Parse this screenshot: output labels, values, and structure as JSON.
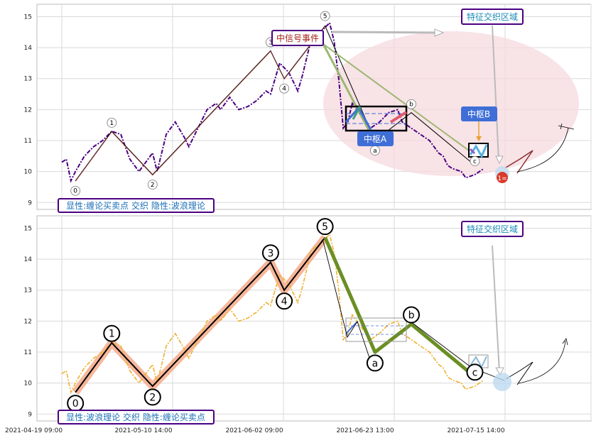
{
  "chart_data": [
    {
      "type": "line",
      "panel": "top",
      "caption": "显性:缠论买卖点 交织 隐性:波浪理论",
      "xlim": [
        0,
        100
      ],
      "ylim": [
        8.8,
        15.4
      ],
      "y_ticks": [
        9,
        10,
        11,
        12,
        13,
        14,
        15
      ],
      "grid": true,
      "series": [
        {
          "role": "price",
          "style": "dash-dot",
          "color": "#4b0082",
          "points": [
            [
              0,
              10.3
            ],
            [
              1,
              10.4
            ],
            [
              2,
              9.7
            ],
            [
              3,
              10.0
            ],
            [
              5,
              10.5
            ],
            [
              7,
              10.8
            ],
            [
              9,
              11.0
            ],
            [
              11,
              11.3
            ],
            [
              13,
              11.2
            ],
            [
              15,
              10.4
            ],
            [
              17,
              10.0
            ],
            [
              18,
              10.2
            ],
            [
              20,
              10.6
            ],
            [
              21,
              10.0
            ],
            [
              23,
              11.2
            ],
            [
              25,
              11.6
            ],
            [
              27,
              11.1
            ],
            [
              28,
              10.8
            ],
            [
              30,
              11.4
            ],
            [
              32,
              12.0
            ],
            [
              34,
              12.2
            ],
            [
              35,
              12.0
            ],
            [
              37,
              12.4
            ],
            [
              39,
              12.0
            ],
            [
              41,
              12.1
            ],
            [
              43,
              12.3
            ],
            [
              45,
              12.6
            ],
            [
              46,
              12.5
            ],
            [
              48,
              13.5
            ],
            [
              50,
              13.2
            ],
            [
              52,
              12.6
            ],
            [
              53,
              13.1
            ],
            [
              55,
              14.3
            ],
            [
              57,
              14.5
            ],
            [
              59,
              14.8
            ],
            [
              60,
              14.2
            ],
            [
              61,
              13.0
            ],
            [
              62,
              11.4
            ],
            [
              63,
              11.6
            ],
            [
              64,
              12.2
            ],
            [
              66,
              11.8
            ],
            [
              68,
              11.4
            ],
            [
              70,
              11.6
            ],
            [
              72,
              11.9
            ],
            [
              74,
              12.0
            ],
            [
              75,
              11.6
            ],
            [
              77,
              11.4
            ],
            [
              79,
              11.2
            ],
            [
              81,
              11.0
            ],
            [
              82,
              10.8
            ],
            [
              83,
              10.6
            ],
            [
              84,
              10.5
            ],
            [
              85,
              10.2
            ],
            [
              86,
              10.1
            ],
            [
              88,
              10.0
            ],
            [
              89,
              9.8
            ],
            [
              91,
              9.9
            ],
            [
              93,
              10.1
            ]
          ]
        },
        {
          "role": "wave",
          "color": "#000000",
          "points": [
            [
              3,
              9.7
            ],
            [
              11,
              11.3
            ],
            [
              20,
              9.9
            ],
            [
              46,
              13.9
            ],
            [
              49,
              13.0
            ],
            [
              58,
              14.7
            ],
            [
              69,
              11.0
            ],
            [
              77,
              11.9
            ],
            [
              91,
              10.2
            ]
          ]
        }
      ],
      "wave_labels": [
        "0",
        "1",
        "2",
        "3",
        "4",
        "5",
        "a",
        "b",
        "c"
      ],
      "annotations": [
        "中信号事件",
        "特征交织区域",
        "中枢A",
        "中枢B",
        "1="
      ]
    },
    {
      "type": "line",
      "panel": "bottom",
      "caption": "显性:波浪理论 交织 隐性:缠论买卖点",
      "xlim": [
        0,
        100
      ],
      "ylim": [
        8.8,
        15.4
      ],
      "y_ticks": [
        9,
        10,
        11,
        12,
        13,
        14,
        15
      ],
      "x_ticks": [
        "2021-04-19 09:00",
        "2021-05-10 14:00",
        "2021-06-02 09:00",
        "2021-06-23 13:00",
        "2021-07-15 14:00"
      ],
      "grid": true,
      "series": [
        {
          "role": "price",
          "style": "dash-dot",
          "color": "#f0b030",
          "points": [
            [
              0,
              10.3
            ],
            [
              1,
              10.4
            ],
            [
              2,
              9.7
            ],
            [
              3,
              10.0
            ],
            [
              5,
              10.5
            ],
            [
              7,
              10.8
            ],
            [
              9,
              11.0
            ],
            [
              11,
              11.3
            ],
            [
              13,
              11.2
            ],
            [
              15,
              10.4
            ],
            [
              17,
              10.0
            ],
            [
              18,
              10.2
            ],
            [
              20,
              10.6
            ],
            [
              21,
              10.0
            ],
            [
              23,
              11.2
            ],
            [
              25,
              11.6
            ],
            [
              27,
              11.1
            ],
            [
              28,
              10.8
            ],
            [
              30,
              11.4
            ],
            [
              32,
              12.0
            ],
            [
              34,
              12.2
            ],
            [
              35,
              12.0
            ],
            [
              37,
              12.4
            ],
            [
              39,
              12.0
            ],
            [
              41,
              12.1
            ],
            [
              43,
              12.3
            ],
            [
              45,
              12.6
            ],
            [
              46,
              12.5
            ],
            [
              48,
              13.5
            ],
            [
              50,
              13.2
            ],
            [
              52,
              12.6
            ],
            [
              53,
              13.1
            ],
            [
              55,
              14.3
            ],
            [
              57,
              14.5
            ],
            [
              59,
              14.8
            ],
            [
              60,
              14.2
            ],
            [
              61,
              13.0
            ],
            [
              62,
              11.4
            ],
            [
              63,
              11.6
            ],
            [
              64,
              12.2
            ],
            [
              66,
              11.8
            ],
            [
              68,
              11.4
            ],
            [
              70,
              11.6
            ],
            [
              72,
              11.9
            ],
            [
              74,
              12.0
            ],
            [
              75,
              11.6
            ],
            [
              77,
              11.4
            ],
            [
              79,
              11.2
            ],
            [
              81,
              11.0
            ],
            [
              82,
              10.8
            ],
            [
              83,
              10.6
            ],
            [
              84,
              10.5
            ],
            [
              85,
              10.2
            ],
            [
              86,
              10.1
            ],
            [
              88,
              10.0
            ],
            [
              89,
              9.8
            ],
            [
              91,
              9.9
            ],
            [
              93,
              10.1
            ]
          ]
        },
        {
          "role": "wave",
          "color": "#000000",
          "points": [
            [
              3,
              9.7
            ],
            [
              11,
              11.3
            ],
            [
              20,
              9.9
            ],
            [
              46,
              13.9
            ],
            [
              49,
              13.0
            ],
            [
              58,
              14.7
            ],
            [
              69,
              11.0
            ],
            [
              77,
              11.9
            ],
            [
              91,
              10.2
            ]
          ]
        }
      ],
      "wave_labels": [
        "0",
        "1",
        "2",
        "3",
        "4",
        "5",
        "a",
        "b",
        "c"
      ],
      "annotations": [
        "特征交织区域"
      ]
    }
  ],
  "colors": {
    "box_border": "#4b0082",
    "caption_text": "#1a6fb5",
    "signal_text": "#a0201b",
    "zone_text": "#1a8ab8",
    "pivot_fill": "#3f6fd6",
    "pivot_text": "#ffffff",
    "pink_zone": "#f6d9df",
    "green_line": "#6b8e23",
    "salmon_band": "#f4a582",
    "light_green": "#9cb870"
  }
}
